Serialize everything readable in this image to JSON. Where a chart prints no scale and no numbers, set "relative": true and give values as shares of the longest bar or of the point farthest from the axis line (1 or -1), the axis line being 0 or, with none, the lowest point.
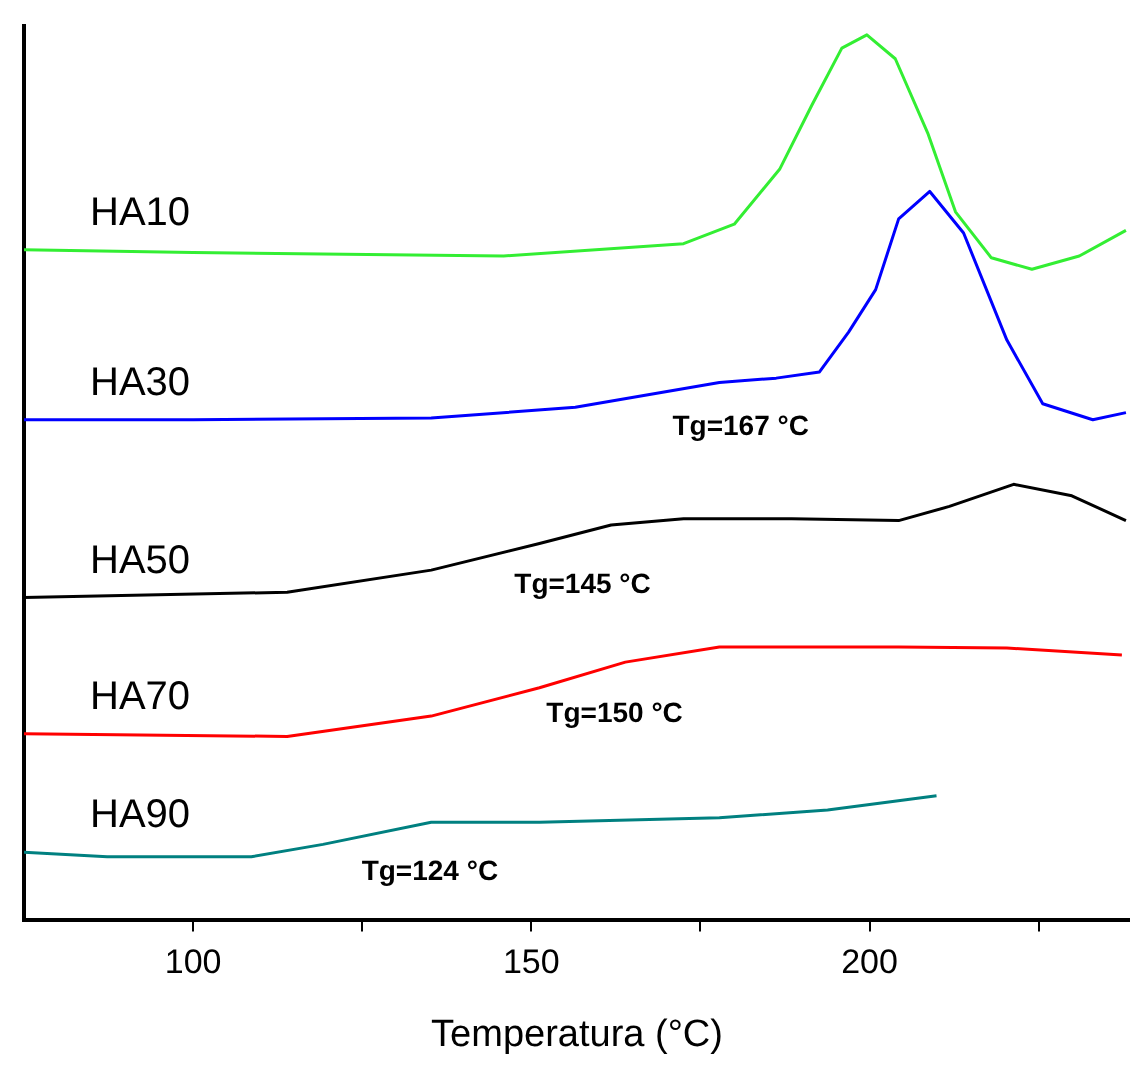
{
  "chart_data": {
    "type": "line",
    "relative": true,
    "xlabel": "Temperatura (°C)",
    "xlim": [
      75,
      238.5
    ],
    "xticks": [
      100,
      {
        "value": 125,
        "label": null
      },
      150,
      {
        "value": 175,
        "label": null
      },
      200,
      {
        "value": 225,
        "label": null
      }
    ],
    "tick_labels": "x",
    "grid": false,
    "legend": false,
    "marker": "none",
    "line_style": "solid",
    "series": [
      {
        "name": "HA10",
        "color": "#33ee33",
        "x": [
          75,
          100,
          145.9,
          172.5,
          180,
          186.7,
          191.5,
          195.9,
          199.6,
          203.8,
          208.6,
          212.7,
          218,
          224,
          231,
          237.9
        ],
        "values": [
          0.757,
          0.754,
          0.75,
          0.764,
          0.786,
          0.848,
          0.921,
          0.985,
          1,
          0.973,
          0.889,
          0.8,
          0.748,
          0.735,
          0.75,
          0.779
        ]
      },
      {
        "name": "HA30",
        "color": "#0000ff",
        "x": [
          75,
          100,
          135.2,
          156.5,
          177.8,
          186.2,
          192.6,
          196.9,
          200.9,
          204.3,
          208.9,
          213.9,
          220.3,
          225.6,
          233,
          237.9
        ],
        "values": [
          0.565,
          0.565,
          0.567,
          0.579,
          0.607,
          0.612,
          0.619,
          0.664,
          0.712,
          0.792,
          0.823,
          0.776,
          0.655,
          0.583,
          0.565,
          0.573
        ]
      },
      {
        "name": "HA50",
        "color": "#000000",
        "x": [
          75,
          113.9,
          135.2,
          151.2,
          161.8,
          172.5,
          188.5,
          204.3,
          211.8,
          221.3,
          229.9,
          237.9
        ],
        "values": [
          0.364,
          0.37,
          0.395,
          0.425,
          0.446,
          0.453,
          0.453,
          0.451,
          0.467,
          0.492,
          0.479,
          0.451
        ]
      },
      {
        "name": "HA70",
        "color": "#ff0000",
        "x": [
          75,
          113.9,
          135.2,
          151.2,
          163.9,
          177.8,
          204.3,
          220.3,
          237.3
        ],
        "values": [
          0.21,
          0.207,
          0.23,
          0.262,
          0.291,
          0.308,
          0.308,
          0.307,
          0.299
        ]
      },
      {
        "name": "HA90",
        "color": "#008080",
        "x": [
          75,
          87.3,
          108.6,
          119.2,
          135.2,
          151.2,
          177.8,
          193.8,
          209.9
        ],
        "values": [
          0.076,
          0.071,
          0.071,
          0.085,
          0.11,
          0.11,
          0.115,
          0.124,
          0.14
        ]
      }
    ],
    "annotations": [
      "Tg=167 °C",
      "Tg=145 °C",
      "Tg=150 °C",
      "Tg=124 °C"
    ]
  }
}
